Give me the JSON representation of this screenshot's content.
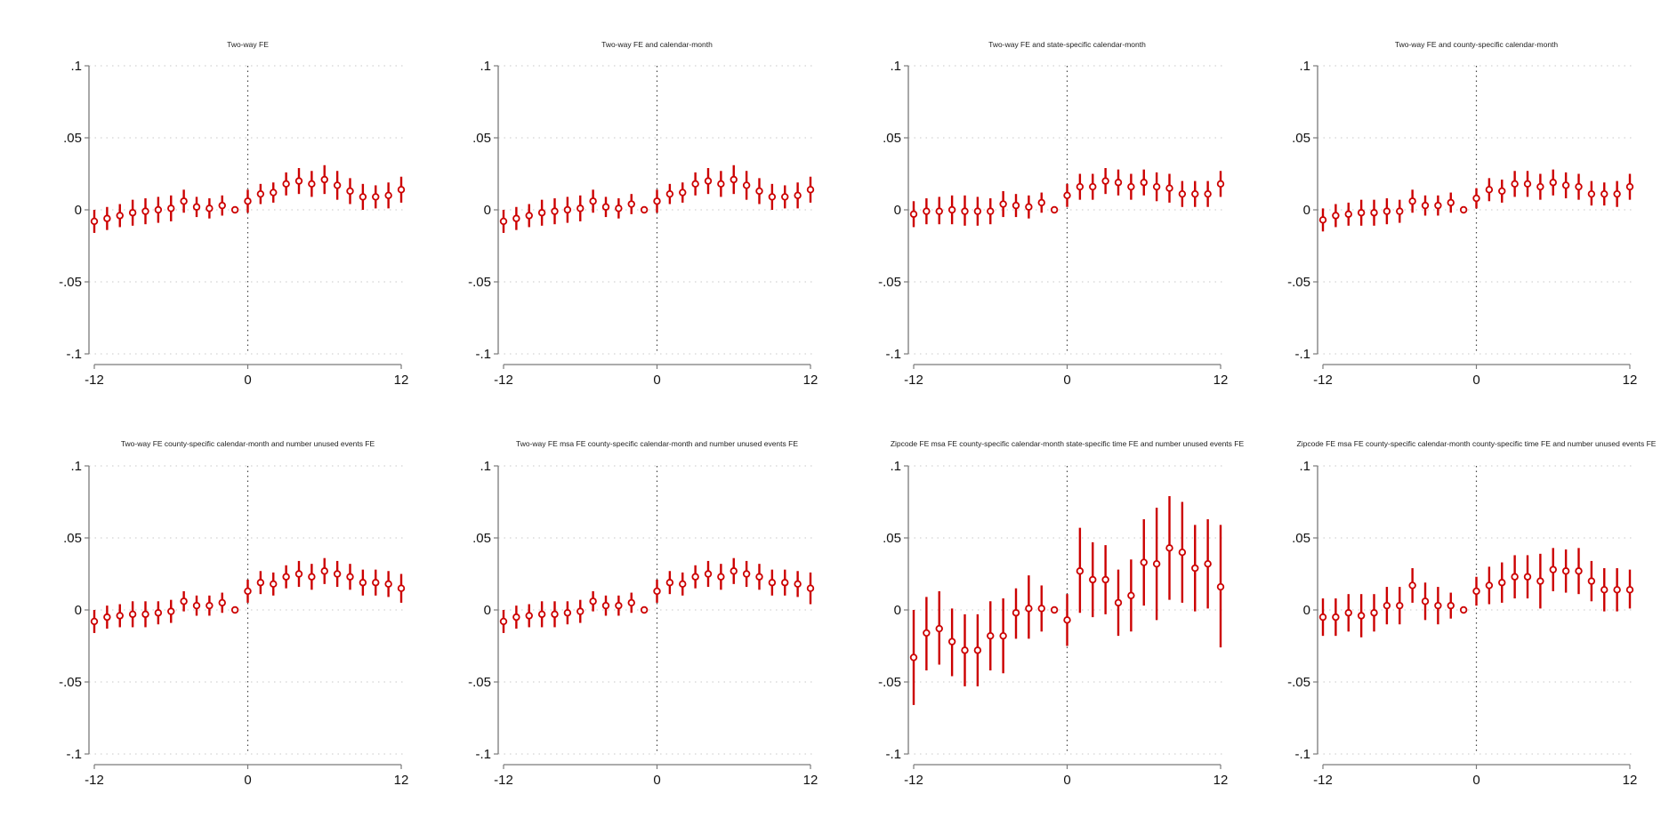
{
  "figure": {
    "colors": {
      "marker": "#cc0000",
      "axis": "#7a7a7a",
      "grid": "#c8c8c8",
      "event_line": "#444444",
      "background": "#ffffff"
    }
  },
  "chart_data": [
    {
      "type": "scatter",
      "title": "Two-way FE",
      "xlabel": "",
      "ylabel": "",
      "x": [
        -12,
        -11,
        -10,
        -9,
        -8,
        -7,
        -6,
        -5,
        -4,
        -3,
        -2,
        -1,
        0,
        1,
        2,
        3,
        4,
        5,
        6,
        7,
        8,
        9,
        10,
        11,
        12
      ],
      "y": [
        -0.008,
        -0.006,
        -0.004,
        -0.002,
        -0.001,
        0.0,
        0.001,
        0.006,
        0.002,
        0.001,
        0.003,
        0.0,
        0.006,
        0.011,
        0.012,
        0.018,
        0.02,
        0.018,
        0.021,
        0.017,
        0.013,
        0.009,
        0.009,
        0.01,
        0.014
      ],
      "ci_low": [
        -0.016,
        -0.014,
        -0.012,
        -0.011,
        -0.01,
        -0.009,
        -0.008,
        -0.002,
        -0.005,
        -0.006,
        -0.004,
        0.0,
        -0.002,
        0.004,
        0.005,
        0.01,
        0.011,
        0.009,
        0.011,
        0.007,
        0.004,
        0.0,
        0.001,
        0.001,
        0.005
      ],
      "ci_high": [
        0.0,
        0.002,
        0.004,
        0.007,
        0.008,
        0.009,
        0.01,
        0.014,
        0.009,
        0.008,
        0.01,
        0.0,
        0.014,
        0.018,
        0.019,
        0.026,
        0.029,
        0.027,
        0.031,
        0.027,
        0.022,
        0.018,
        0.017,
        0.019,
        0.023
      ],
      "xticks": [
        -12,
        0,
        12
      ],
      "xtick_labels": [
        "-12",
        "0",
        "12"
      ],
      "yticks": [
        -0.1,
        -0.05,
        0,
        0.05,
        0.1
      ],
      "ytick_labels": [
        "-.1",
        "-.05",
        "0",
        ".05",
        ".1"
      ],
      "xlim": [
        -12,
        12
      ],
      "ylim": [
        -0.1,
        0.1
      ],
      "grid": true,
      "event_line_x": 0
    },
    {
      "type": "scatter",
      "title": "Two-way FE and calendar-month",
      "xlabel": "",
      "ylabel": "",
      "x": [
        -12,
        -11,
        -10,
        -9,
        -8,
        -7,
        -6,
        -5,
        -4,
        -3,
        -2,
        -1,
        0,
        1,
        2,
        3,
        4,
        5,
        6,
        7,
        8,
        9,
        10,
        11,
        12
      ],
      "y": [
        -0.008,
        -0.006,
        -0.004,
        -0.002,
        -0.001,
        0.0,
        0.001,
        0.006,
        0.002,
        0.001,
        0.004,
        0.0,
        0.006,
        0.011,
        0.012,
        0.018,
        0.02,
        0.018,
        0.021,
        0.017,
        0.013,
        0.009,
        0.009,
        0.01,
        0.014
      ],
      "ci_low": [
        -0.016,
        -0.014,
        -0.012,
        -0.011,
        -0.01,
        -0.009,
        -0.008,
        -0.002,
        -0.005,
        -0.006,
        -0.003,
        0.0,
        -0.002,
        0.004,
        0.005,
        0.01,
        0.011,
        0.009,
        0.011,
        0.007,
        0.004,
        0.0,
        0.001,
        0.001,
        0.005
      ],
      "ci_high": [
        0.0,
        0.002,
        0.004,
        0.007,
        0.008,
        0.009,
        0.01,
        0.014,
        0.009,
        0.008,
        0.011,
        0.0,
        0.014,
        0.018,
        0.019,
        0.026,
        0.029,
        0.027,
        0.031,
        0.027,
        0.022,
        0.018,
        0.017,
        0.019,
        0.023
      ],
      "xticks": [
        -12,
        0,
        12
      ],
      "xtick_labels": [
        "-12",
        "0",
        "12"
      ],
      "yticks": [
        -0.1,
        -0.05,
        0,
        0.05,
        0.1
      ],
      "ytick_labels": [
        "-.1",
        "-.05",
        "0",
        ".05",
        ".1"
      ],
      "xlim": [
        -12,
        12
      ],
      "ylim": [
        -0.1,
        0.1
      ],
      "grid": true,
      "event_line_x": 0
    },
    {
      "type": "scatter",
      "title": "Two-way FE and state-specific calendar-month",
      "xlabel": "",
      "ylabel": "",
      "x": [
        -12,
        -11,
        -10,
        -9,
        -8,
        -7,
        -6,
        -5,
        -4,
        -3,
        -2,
        -1,
        0,
        1,
        2,
        3,
        4,
        5,
        6,
        7,
        8,
        9,
        10,
        11,
        12
      ],
      "y": [
        -0.003,
        -0.001,
        -0.001,
        0.0,
        -0.001,
        -0.001,
        -0.001,
        0.004,
        0.003,
        0.002,
        0.005,
        0.0,
        0.01,
        0.016,
        0.016,
        0.02,
        0.019,
        0.016,
        0.019,
        0.016,
        0.015,
        0.011,
        0.011,
        0.011,
        0.018
      ],
      "ci_low": [
        -0.012,
        -0.01,
        -0.01,
        -0.01,
        -0.011,
        -0.011,
        -0.01,
        -0.005,
        -0.005,
        -0.006,
        -0.002,
        0.0,
        0.002,
        0.007,
        0.007,
        0.011,
        0.01,
        0.007,
        0.01,
        0.006,
        0.005,
        0.002,
        0.002,
        0.002,
        0.009
      ],
      "ci_high": [
        0.006,
        0.008,
        0.009,
        0.01,
        0.01,
        0.009,
        0.008,
        0.013,
        0.011,
        0.01,
        0.012,
        0.0,
        0.018,
        0.025,
        0.025,
        0.029,
        0.028,
        0.025,
        0.028,
        0.026,
        0.025,
        0.02,
        0.02,
        0.02,
        0.027
      ],
      "xticks": [
        -12,
        0,
        12
      ],
      "xtick_labels": [
        "-12",
        "0",
        "12"
      ],
      "yticks": [
        -0.1,
        -0.05,
        0,
        0.05,
        0.1
      ],
      "ytick_labels": [
        "-.1",
        "-.05",
        "0",
        ".05",
        ".1"
      ],
      "xlim": [
        -12,
        12
      ],
      "ylim": [
        -0.1,
        0.1
      ],
      "grid": true,
      "event_line_x": 0
    },
    {
      "type": "scatter",
      "title": "Two-way FE and county-specific calendar-month",
      "xlabel": "",
      "ylabel": "",
      "x": [
        -12,
        -11,
        -10,
        -9,
        -8,
        -7,
        -6,
        -5,
        -4,
        -3,
        -2,
        -1,
        0,
        1,
        2,
        3,
        4,
        5,
        6,
        7,
        8,
        9,
        10,
        11,
        12
      ],
      "y": [
        -0.007,
        -0.004,
        -0.003,
        -0.002,
        -0.002,
        -0.001,
        -0.001,
        0.006,
        0.003,
        0.003,
        0.005,
        0.0,
        0.008,
        0.014,
        0.013,
        0.018,
        0.018,
        0.016,
        0.019,
        0.017,
        0.016,
        0.011,
        0.011,
        0.011,
        0.016
      ],
      "ci_low": [
        -0.015,
        -0.012,
        -0.011,
        -0.011,
        -0.011,
        -0.01,
        -0.009,
        -0.002,
        -0.004,
        -0.004,
        -0.002,
        0.0,
        0.001,
        0.006,
        0.005,
        0.009,
        0.009,
        0.007,
        0.01,
        0.008,
        0.007,
        0.003,
        0.003,
        0.002,
        0.007
      ],
      "ci_high": [
        0.001,
        0.004,
        0.005,
        0.007,
        0.007,
        0.008,
        0.007,
        0.014,
        0.01,
        0.01,
        0.012,
        0.0,
        0.015,
        0.022,
        0.021,
        0.027,
        0.027,
        0.025,
        0.028,
        0.026,
        0.025,
        0.02,
        0.019,
        0.02,
        0.025
      ],
      "xticks": [
        -12,
        0,
        12
      ],
      "xtick_labels": [
        "-12",
        "0",
        "12"
      ],
      "yticks": [
        -0.1,
        -0.05,
        0,
        0.05,
        0.1
      ],
      "ytick_labels": [
        "-.1",
        "-.05",
        "0",
        ".05",
        ".1"
      ],
      "xlim": [
        -12,
        12
      ],
      "ylim": [
        -0.1,
        0.1
      ],
      "grid": true,
      "event_line_x": 0
    },
    {
      "type": "scatter",
      "title": "Two-way FE county-specific calendar-month and number unused events FE",
      "xlabel": "",
      "ylabel": "",
      "x": [
        -12,
        -11,
        -10,
        -9,
        -8,
        -7,
        -6,
        -5,
        -4,
        -3,
        -2,
        -1,
        0,
        1,
        2,
        3,
        4,
        5,
        6,
        7,
        8,
        9,
        10,
        11,
        12
      ],
      "y": [
        -0.008,
        -0.005,
        -0.004,
        -0.003,
        -0.003,
        -0.002,
        -0.001,
        0.006,
        0.003,
        0.003,
        0.005,
        0.0,
        0.013,
        0.019,
        0.018,
        0.023,
        0.025,
        0.023,
        0.027,
        0.025,
        0.023,
        0.019,
        0.019,
        0.018,
        0.015
      ],
      "ci_low": [
        -0.016,
        -0.013,
        -0.012,
        -0.012,
        -0.012,
        -0.01,
        -0.009,
        -0.001,
        -0.004,
        -0.004,
        -0.002,
        0.0,
        0.005,
        0.011,
        0.01,
        0.015,
        0.016,
        0.014,
        0.018,
        0.016,
        0.014,
        0.01,
        0.01,
        0.009,
        0.005
      ],
      "ci_high": [
        0.0,
        0.003,
        0.004,
        0.006,
        0.006,
        0.006,
        0.007,
        0.013,
        0.01,
        0.01,
        0.012,
        0.0,
        0.021,
        0.027,
        0.026,
        0.031,
        0.034,
        0.032,
        0.036,
        0.034,
        0.032,
        0.028,
        0.028,
        0.027,
        0.025
      ],
      "xticks": [
        -12,
        0,
        12
      ],
      "xtick_labels": [
        "-12",
        "0",
        "12"
      ],
      "yticks": [
        -0.1,
        -0.05,
        0,
        0.05,
        0.1
      ],
      "ytick_labels": [
        "-.1",
        "-.05",
        "0",
        ".05",
        ".1"
      ],
      "xlim": [
        -12,
        12
      ],
      "ylim": [
        -0.1,
        0.1
      ],
      "grid": true,
      "event_line_x": 0
    },
    {
      "type": "scatter",
      "title": "Two-way FE msa FE county-specific calendar-month and number unused events FE",
      "xlabel": "",
      "ylabel": "",
      "x": [
        -12,
        -11,
        -10,
        -9,
        -8,
        -7,
        -6,
        -5,
        -4,
        -3,
        -2,
        -1,
        0,
        1,
        2,
        3,
        4,
        5,
        6,
        7,
        8,
        9,
        10,
        11,
        12
      ],
      "y": [
        -0.008,
        -0.005,
        -0.004,
        -0.003,
        -0.003,
        -0.002,
        -0.001,
        0.006,
        0.003,
        0.003,
        0.005,
        0.0,
        0.013,
        0.019,
        0.018,
        0.023,
        0.025,
        0.023,
        0.027,
        0.025,
        0.023,
        0.019,
        0.019,
        0.018,
        0.015
      ],
      "ci_low": [
        -0.016,
        -0.013,
        -0.012,
        -0.012,
        -0.012,
        -0.01,
        -0.009,
        -0.001,
        -0.004,
        -0.004,
        -0.002,
        0.0,
        0.005,
        0.011,
        0.01,
        0.015,
        0.016,
        0.014,
        0.018,
        0.016,
        0.014,
        0.01,
        0.01,
        0.009,
        0.004
      ],
      "ci_high": [
        0.0,
        0.003,
        0.004,
        0.006,
        0.006,
        0.006,
        0.007,
        0.013,
        0.01,
        0.01,
        0.012,
        0.0,
        0.021,
        0.027,
        0.026,
        0.031,
        0.034,
        0.032,
        0.036,
        0.034,
        0.032,
        0.028,
        0.028,
        0.027,
        0.026
      ],
      "xticks": [
        -12,
        0,
        12
      ],
      "xtick_labels": [
        "-12",
        "0",
        "12"
      ],
      "yticks": [
        -0.1,
        -0.05,
        0,
        0.05,
        0.1
      ],
      "ytick_labels": [
        "-.1",
        "-.05",
        "0",
        ".05",
        ".1"
      ],
      "xlim": [
        -12,
        12
      ],
      "ylim": [
        -0.1,
        0.1
      ],
      "grid": true,
      "event_line_x": 0
    },
    {
      "type": "scatter",
      "title": "Zipcode FE msa FE county-specific calendar-month state-specific time FE and number unused events FE",
      "xlabel": "",
      "ylabel": "",
      "x": [
        -12,
        -11,
        -10,
        -9,
        -8,
        -7,
        -6,
        -5,
        -4,
        -3,
        -2,
        -1,
        0,
        1,
        2,
        3,
        4,
        5,
        6,
        7,
        8,
        9,
        10,
        11,
        12
      ],
      "y": [
        -0.033,
        -0.016,
        -0.013,
        -0.022,
        -0.028,
        -0.028,
        -0.018,
        -0.018,
        -0.002,
        0.001,
        0.001,
        0.0,
        -0.007,
        0.027,
        0.021,
        0.021,
        0.005,
        0.01,
        0.033,
        0.032,
        0.043,
        0.04,
        0.029,
        0.032,
        0.016
      ],
      "ci_low": [
        -0.066,
        -0.042,
        -0.038,
        -0.046,
        -0.053,
        -0.053,
        -0.042,
        -0.044,
        -0.02,
        -0.02,
        -0.015,
        0.0,
        -0.025,
        -0.002,
        -0.005,
        -0.003,
        -0.018,
        -0.015,
        0.003,
        -0.007,
        0.007,
        0.005,
        -0.001,
        0.001,
        -0.026
      ],
      "ci_high": [
        0.0,
        0.009,
        0.013,
        0.001,
        -0.003,
        -0.003,
        0.006,
        0.008,
        0.015,
        0.024,
        0.017,
        0.0,
        0.011,
        0.057,
        0.047,
        0.045,
        0.028,
        0.035,
        0.063,
        0.071,
        0.079,
        0.075,
        0.059,
        0.063,
        0.059
      ],
      "xticks": [
        -12,
        0,
        12
      ],
      "xtick_labels": [
        "-12",
        "0",
        "12"
      ],
      "yticks": [
        -0.1,
        -0.05,
        0,
        0.05,
        0.1
      ],
      "ytick_labels": [
        "-.1",
        "-.05",
        "0",
        ".05",
        ".1"
      ],
      "xlim": [
        -12,
        12
      ],
      "ylim": [
        -0.1,
        0.1
      ],
      "grid": true,
      "event_line_x": 0
    },
    {
      "type": "scatter",
      "title": "Zipcode FE msa FE county-specific calendar-month county-specific time FE and number unused events FE",
      "xlabel": "",
      "ylabel": "",
      "x": [
        -12,
        -11,
        -10,
        -9,
        -8,
        -7,
        -6,
        -5,
        -4,
        -3,
        -2,
        -1,
        0,
        1,
        2,
        3,
        4,
        5,
        6,
        7,
        8,
        9,
        10,
        11,
        12
      ],
      "y": [
        -0.005,
        -0.005,
        -0.002,
        -0.004,
        -0.002,
        0.003,
        0.003,
        0.017,
        0.006,
        0.003,
        0.003,
        0.0,
        0.013,
        0.017,
        0.019,
        0.023,
        0.023,
        0.02,
        0.028,
        0.027,
        0.027,
        0.02,
        0.014,
        0.014,
        0.014
      ],
      "ci_low": [
        -0.018,
        -0.018,
        -0.015,
        -0.019,
        -0.015,
        -0.01,
        -0.01,
        0.005,
        -0.007,
        -0.01,
        -0.006,
        0.0,
        0.003,
        0.004,
        0.005,
        0.008,
        0.008,
        0.001,
        0.013,
        0.012,
        0.011,
        0.006,
        -0.001,
        -0.001,
        0.001
      ],
      "ci_high": [
        0.008,
        0.008,
        0.011,
        0.011,
        0.011,
        0.016,
        0.016,
        0.029,
        0.019,
        0.016,
        0.012,
        0.0,
        0.023,
        0.03,
        0.033,
        0.038,
        0.038,
        0.039,
        0.043,
        0.042,
        0.043,
        0.034,
        0.029,
        0.029,
        0.028
      ],
      "xticks": [
        -12,
        0,
        12
      ],
      "xtick_labels": [
        "-12",
        "0",
        "12"
      ],
      "yticks": [
        -0.1,
        -0.05,
        0,
        0.05,
        0.1
      ],
      "ytick_labels": [
        "-.1",
        "-.05",
        "0",
        ".05",
        ".1"
      ],
      "xlim": [
        -12,
        12
      ],
      "ylim": [
        -0.1,
        0.1
      ],
      "grid": true,
      "event_line_x": 0
    }
  ]
}
